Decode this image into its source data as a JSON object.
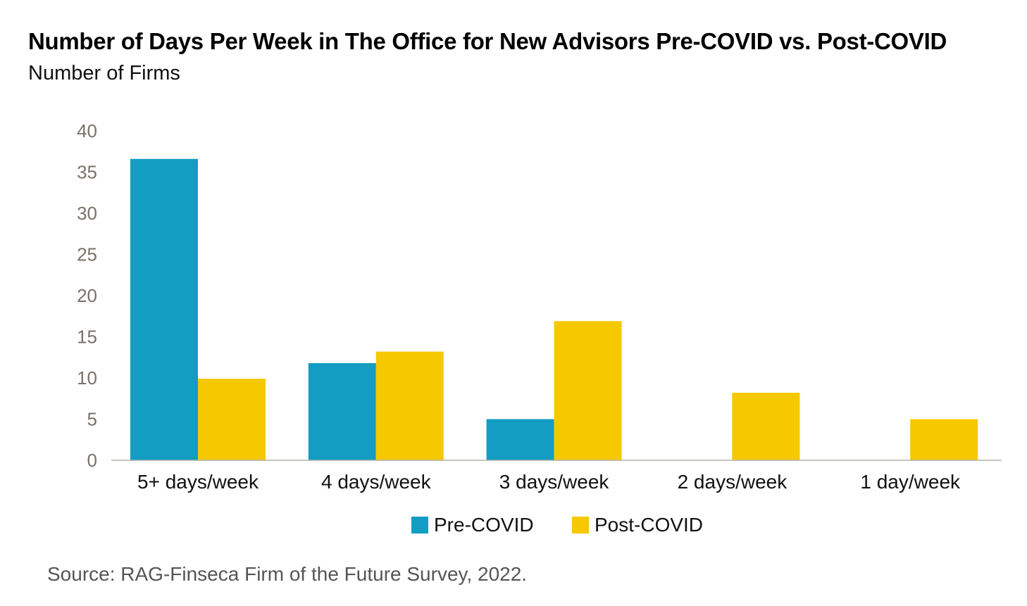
{
  "title": "Number of Days Per Week in The Office for New Advisors Pre-COVID vs. Post-COVID",
  "subtitle": "Number of Firms",
  "source": "Source: RAG-Finseca Firm of the Future Survey, 2022.",
  "chart_data": {
    "type": "bar",
    "title": "Number of Days Per Week in The Office for New Advisors Pre-COVID vs. Post-COVID",
    "subtitle": "Number of Firms",
    "categories": [
      "5+ days/week",
      "4 days/week",
      "3 days/week",
      "2 days/week",
      "1 day/week"
    ],
    "series": [
      {
        "name": "Pre-COVID",
        "color": "#139dc2",
        "values": [
          36.6,
          11.8,
          5,
          0,
          0
        ]
      },
      {
        "name": "Post-COVID",
        "color": "#f6c800",
        "values": [
          9.9,
          13.2,
          16.9,
          8.2,
          5
        ]
      }
    ],
    "yticks": [
      "0",
      "5",
      "10",
      "15",
      "20",
      "25",
      "30",
      "35",
      "40"
    ],
    "ylim": [
      0,
      40
    ],
    "grid": false,
    "legend_position": "bottom"
  }
}
